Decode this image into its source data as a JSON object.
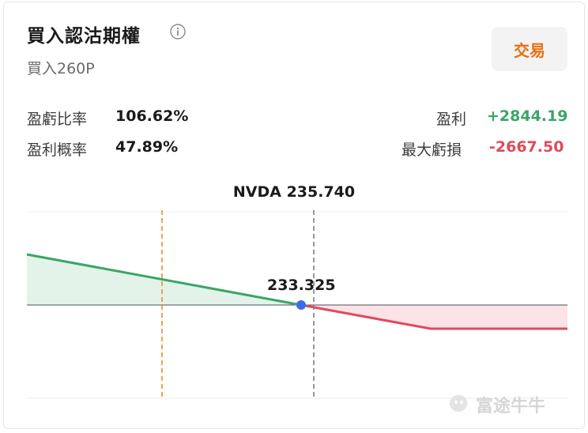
{
  "header": {
    "title": "買入認沽期權",
    "subtitle": "買入260P",
    "trade_button": "交易"
  },
  "stats": {
    "ratio_label": "盈虧比率",
    "ratio_value": "106.62%",
    "prob_label": "盈利概率",
    "prob_value": "47.89%",
    "profit_label": "盈利",
    "profit_value": "+2844.19",
    "max_loss_label": "最大虧損",
    "max_loss_value": "-2667.50"
  },
  "chart": {
    "ticker_label": "NVDA 235.740",
    "breakeven_label": "233.325"
  },
  "colors": {
    "profit": "#3aa567",
    "loss": "#e04a5c",
    "accent": "#e8700b",
    "breakeven_dot": "#3d6bef"
  },
  "watermark": "富途牛牛",
  "chart_data": {
    "type": "line",
    "current_price": 235.74,
    "breakeven": 233.325,
    "max_profit": 2844.19,
    "max_loss": -2667.5
  }
}
